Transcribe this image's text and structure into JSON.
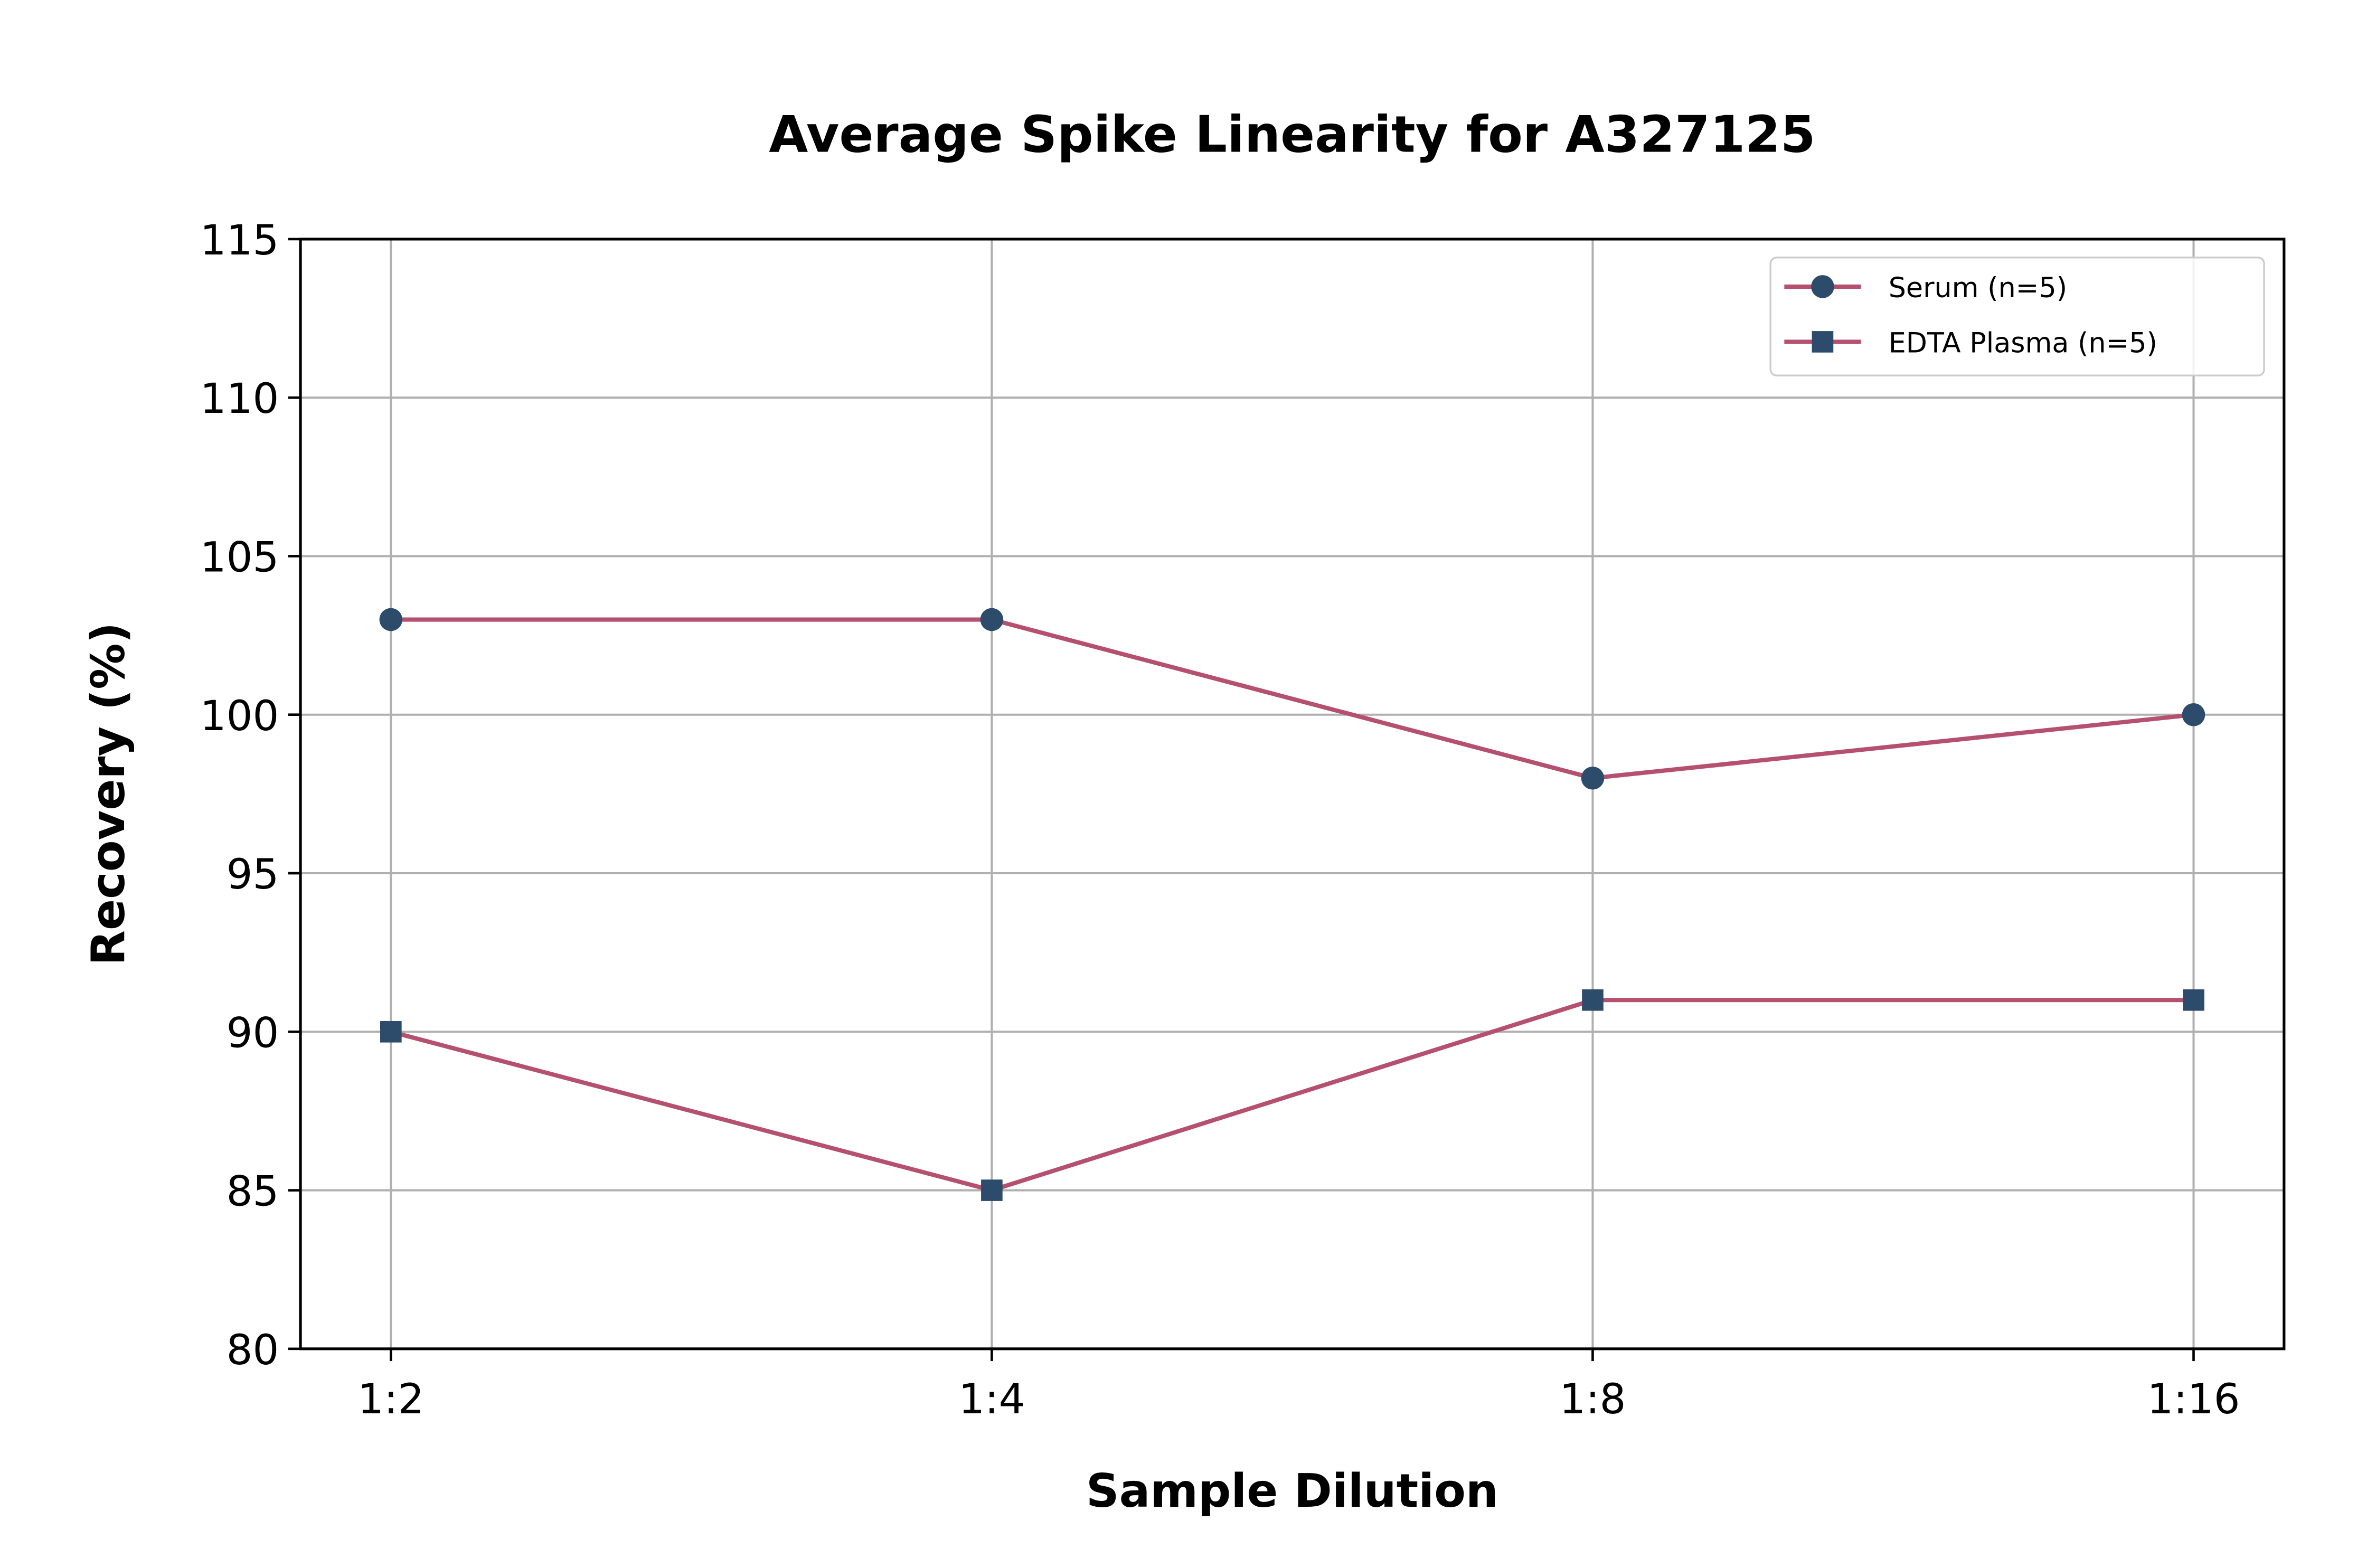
{
  "chart_data": {
    "type": "line",
    "title": "Average Spike Linearity for A327125",
    "xlabel": "Sample Dilution",
    "ylabel": "Recovery (%)",
    "categories": [
      "1:2",
      "1:4",
      "1:8",
      "1:16"
    ],
    "ylim": [
      80,
      115
    ],
    "yticks": [
      80,
      85,
      90,
      95,
      100,
      105,
      110,
      115
    ],
    "grid": true,
    "legend_position": "top-right",
    "series": [
      {
        "name": "Serum (n=5)",
        "values": [
          103,
          103,
          98,
          100
        ],
        "marker": "circle",
        "line_color": "#b5506f",
        "marker_color": "#2d4b6b"
      },
      {
        "name": "EDTA Plasma (n=5)",
        "values": [
          90,
          85,
          91,
          91
        ],
        "marker": "square",
        "line_color": "#b5506f",
        "marker_color": "#2d4b6b"
      }
    ]
  }
}
